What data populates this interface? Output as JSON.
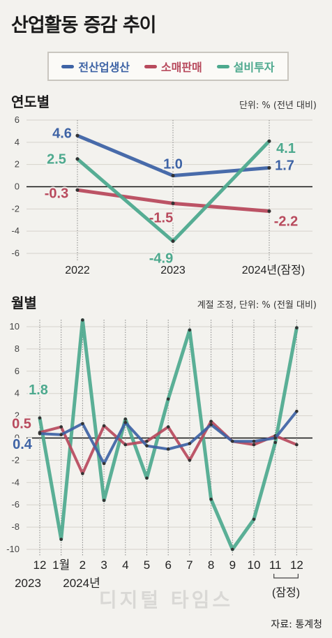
{
  "title": "산업활동 증감 추이",
  "legend": [
    {
      "label": "전산업생산",
      "color": "#3e63a5"
    },
    {
      "label": "소매판매",
      "color": "#b84a5d"
    },
    {
      "label": "설비투자",
      "color": "#4da98e"
    }
  ],
  "source": "자료: 통계청",
  "watermark": "디지털 타임스",
  "chart_data": [
    {
      "type": "line",
      "title": "연도별",
      "unit": "단위: % (전년 대비)",
      "categories": [
        "2022",
        "2023",
        "2024년(잠정)"
      ],
      "ylim": [
        -6,
        6
      ],
      "yticks": [
        "6",
        "4",
        "2",
        "0",
        "-2",
        "-4",
        "-6"
      ],
      "series": [
        {
          "name": "전산업생산",
          "values": [
            4.6,
            1.0,
            1.7
          ],
          "labels": [
            "4.6",
            "1.0",
            "1.7"
          ]
        },
        {
          "name": "소매판매",
          "values": [
            -0.3,
            -1.5,
            -2.2
          ],
          "labels": [
            "-0.3",
            "-1.5",
            "-2.2"
          ]
        },
        {
          "name": "설비투자",
          "values": [
            2.5,
            -4.9,
            4.1
          ],
          "labels": [
            "2.5",
            "-4.9",
            "4.1"
          ]
        }
      ]
    },
    {
      "type": "line",
      "title": "월별",
      "unit": "계절 조정, 단위: % (전월 대비)",
      "categories": [
        "12",
        "1월",
        "2",
        "3",
        "4",
        "5",
        "6",
        "7",
        "8",
        "9",
        "10",
        "11",
        "12"
      ],
      "year_labels": [
        "2023",
        "2024년"
      ],
      "provisional_label": "(잠정)",
      "ylim": [
        -10,
        10
      ],
      "yticks": [
        "10",
        "8",
        "6",
        "4",
        "2",
        "0",
        "-2",
        "-4",
        "-6",
        "-8",
        "-10"
      ],
      "series": [
        {
          "name": "전산업생산",
          "values": [
            0.4,
            0.3,
            1.3,
            -2.3,
            1.4,
            -0.7,
            -1.0,
            -0.5,
            1.2,
            -0.3,
            -0.3,
            0.0,
            2.4
          ],
          "first_label": "0.4"
        },
        {
          "name": "소매판매",
          "values": [
            0.5,
            1.0,
            -3.2,
            1.1,
            -0.6,
            -0.3,
            1.0,
            -2.0,
            1.5,
            -0.3,
            -0.6,
            0.2,
            -0.6
          ],
          "first_label": "0.5"
        },
        {
          "name": "설비투자",
          "values": [
            1.8,
            -9.1,
            10.6,
            -5.6,
            1.7,
            -3.6,
            3.5,
            9.7,
            -5.5,
            -10.0,
            -7.3,
            -0.4,
            9.9
          ],
          "first_label": "1.8"
        }
      ]
    }
  ]
}
